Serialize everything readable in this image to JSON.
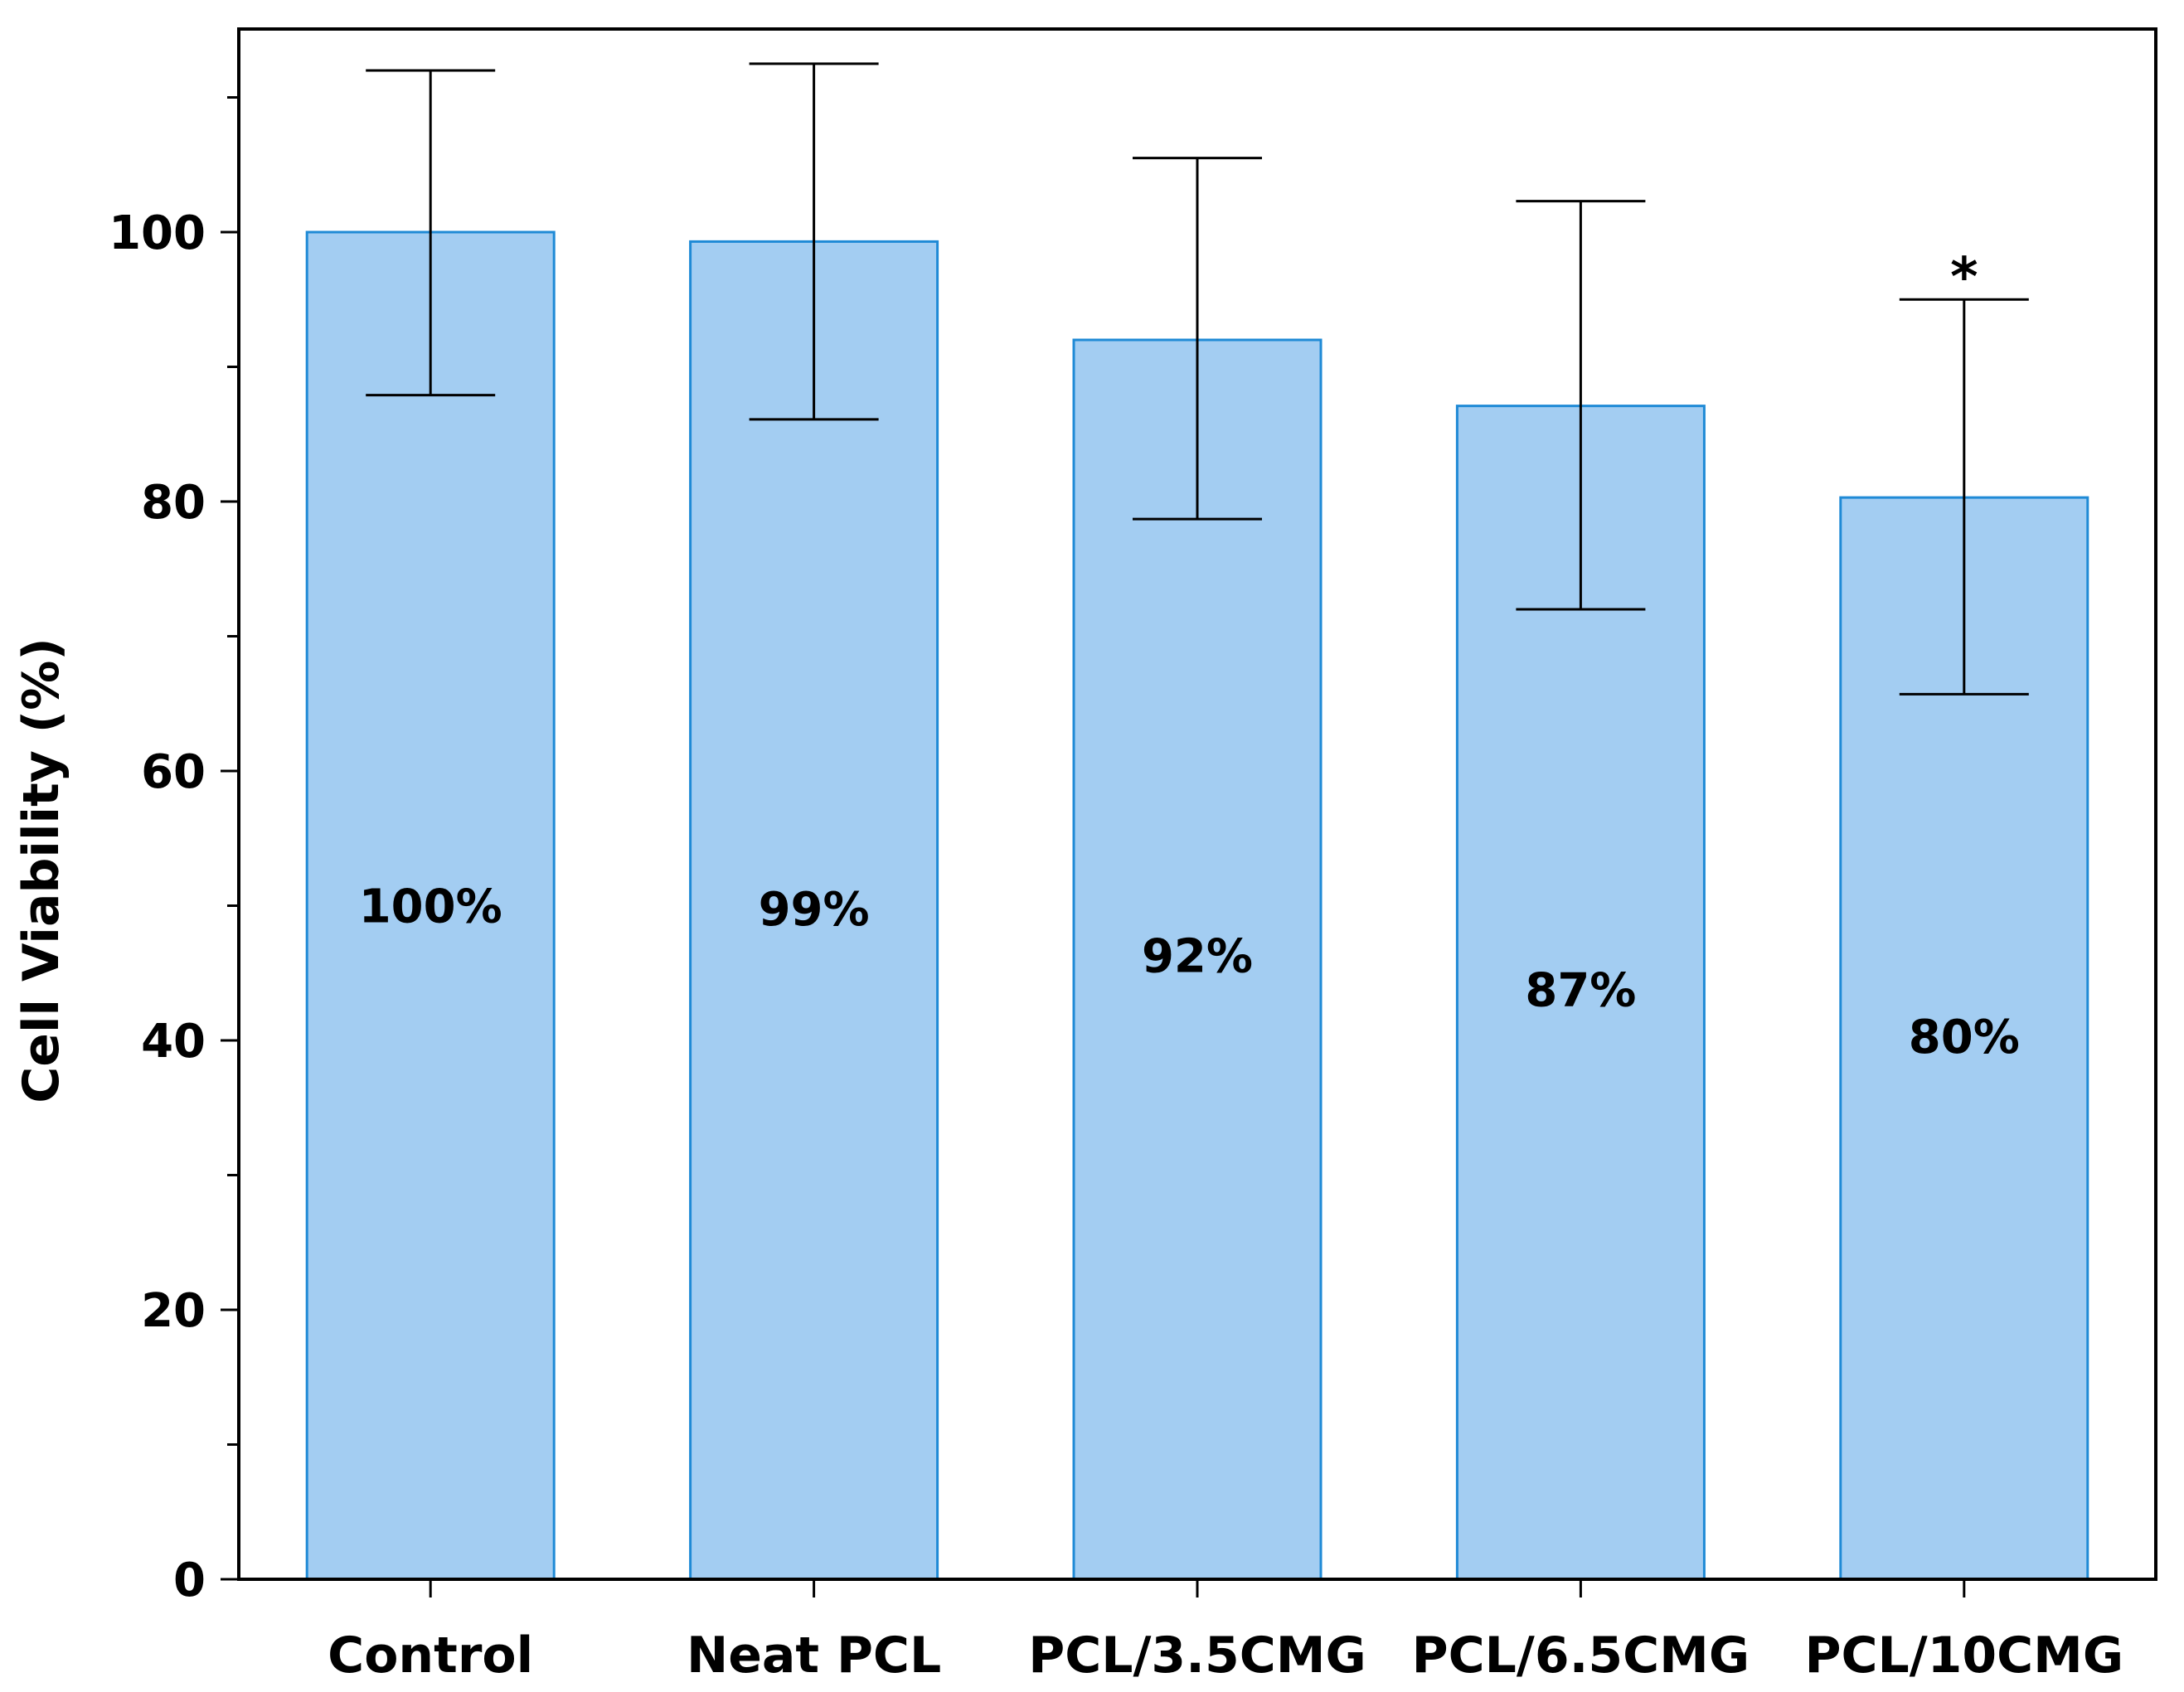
{
  "chart_data": {
    "type": "bar",
    "title": "",
    "xlabel": "",
    "ylabel": "Cell Viability (%)",
    "ylim": [
      0,
      115
    ],
    "yticks": [
      0,
      20,
      40,
      60,
      80,
      100
    ],
    "minor_tick_step": 10,
    "grid": false,
    "legend": "none",
    "categories": [
      "Control",
      "Neat PCL",
      "PCL/3.5CMG",
      "PCL/6.5CMG",
      "PCL/10CMG"
    ],
    "values": [
      100,
      99.3,
      92,
      87.1,
      80.3
    ],
    "error_low": [
      87.9,
      86.1,
      78.7,
      72,
      65.7
    ],
    "error_high": [
      112,
      112.5,
      105.5,
      102.3,
      95
    ],
    "value_labels": [
      "100%",
      "99%",
      "92%",
      "87%",
      "80%"
    ],
    "value_label_positions": [
      50,
      49.8,
      46.3,
      43.8,
      40.3
    ],
    "annotations": [
      {
        "category": "PCL/10CMG",
        "text": "*",
        "y": 97.3
      }
    ],
    "colors": {
      "bar_fill": "#a3cdf2",
      "bar_edge": "#1f8ad6",
      "axis": "#000000"
    }
  }
}
